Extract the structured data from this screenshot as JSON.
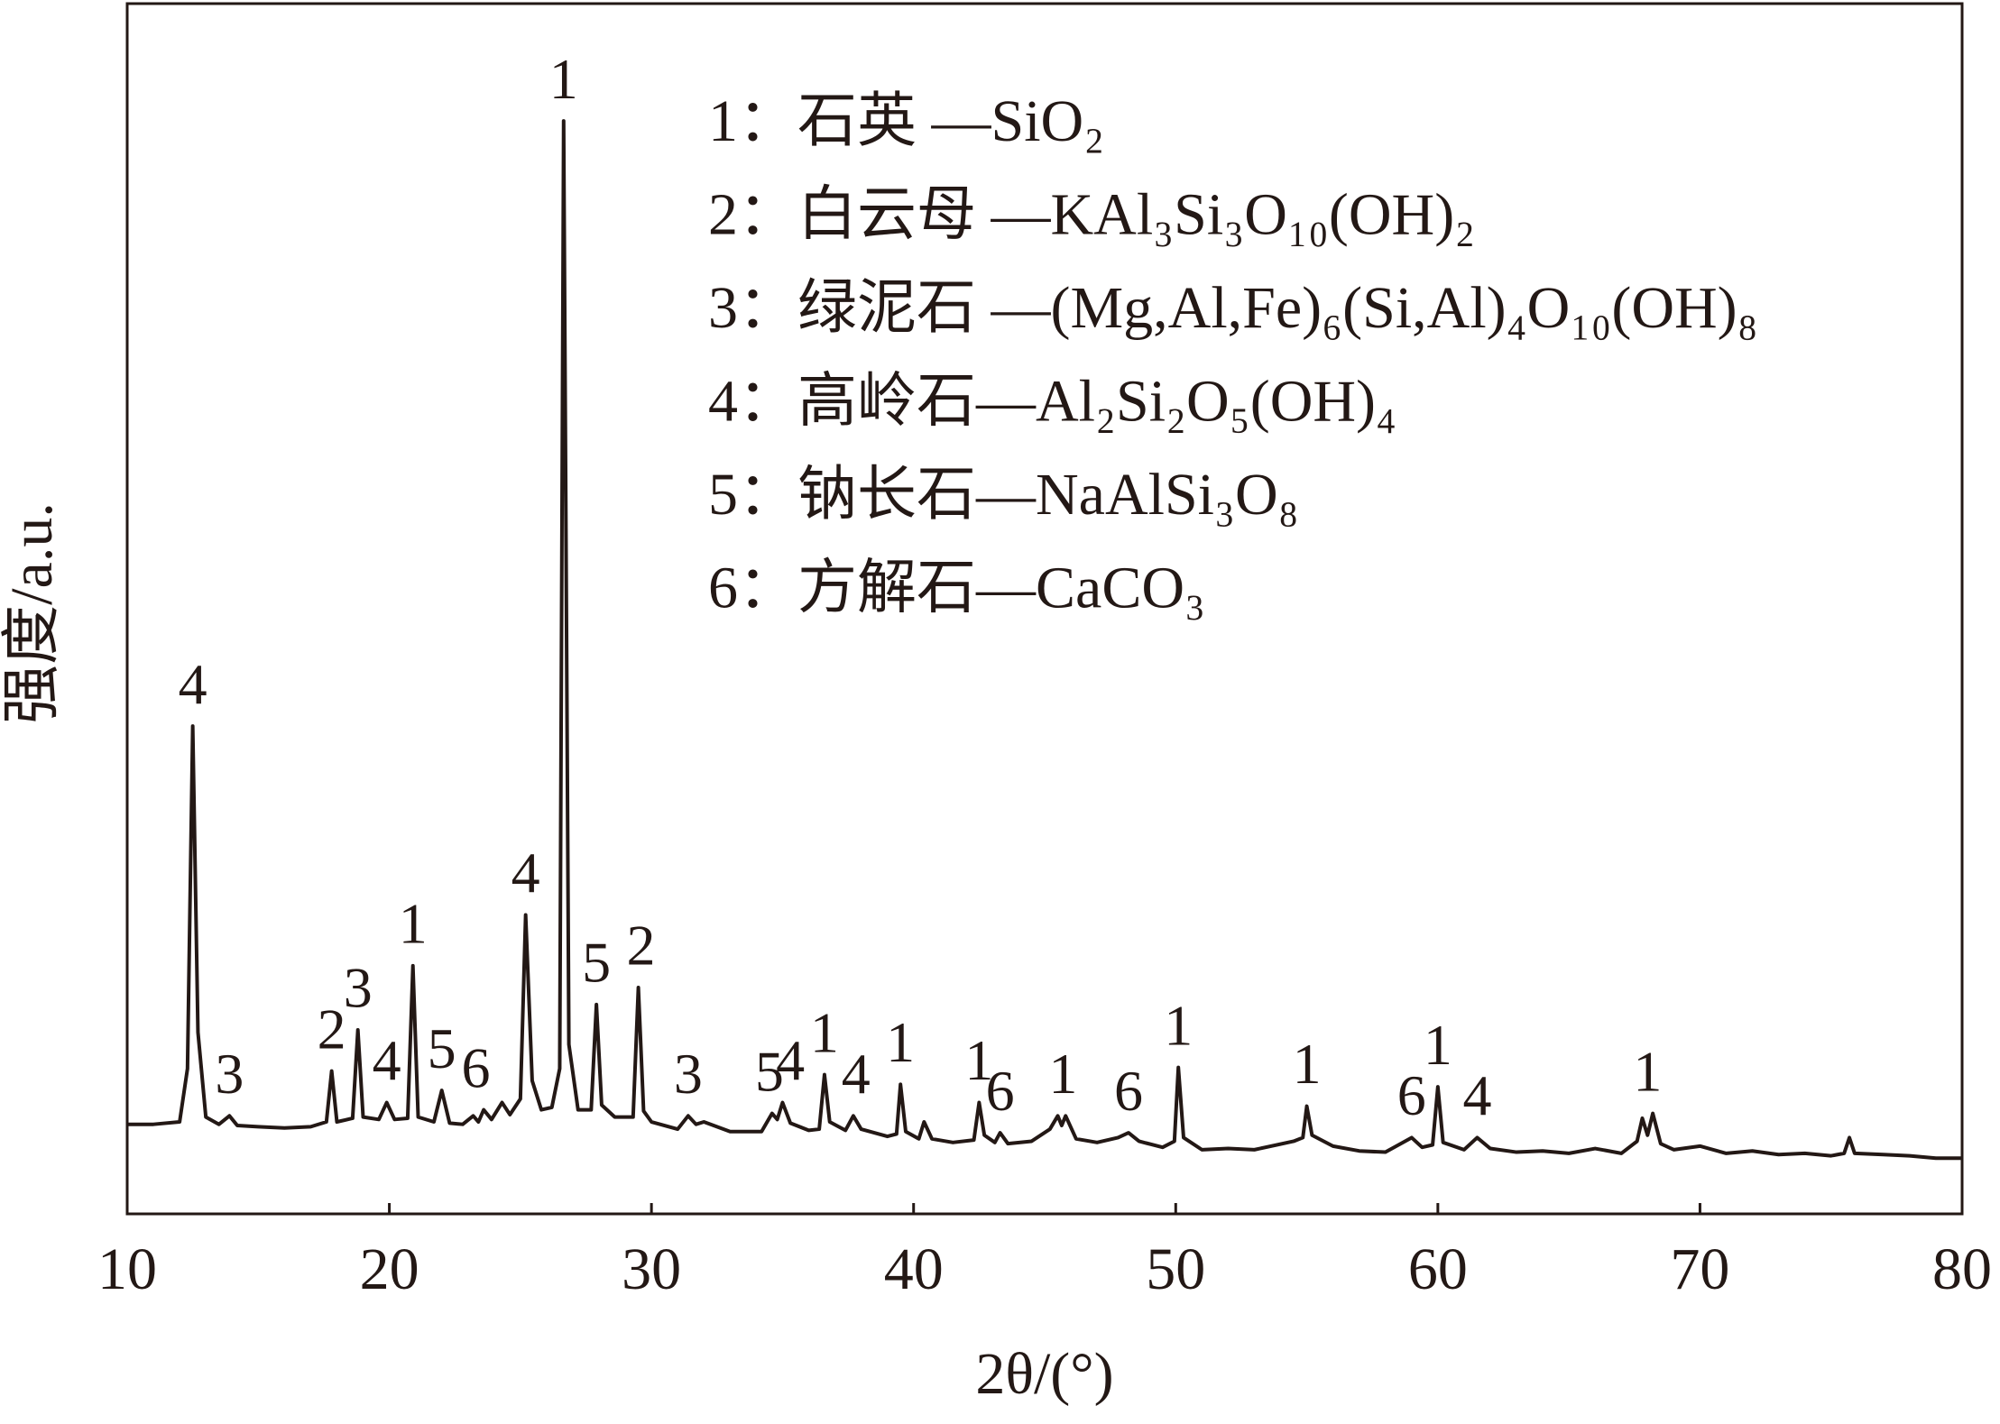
{
  "chart_data": {
    "type": "line",
    "x_label": "2θ/(°)",
    "y_label": "强度/a.u.",
    "color": "#231815",
    "x": [
      10,
      11,
      12,
      12.3,
      12.5,
      12.7,
      13.0,
      13.5,
      13.9,
      14.2,
      15,
      16,
      17,
      17.6,
      17.8,
      18.0,
      18.6,
      18.8,
      19.0,
      19.6,
      19.9,
      20.2,
      20.7,
      20.9,
      21.1,
      21.7,
      22.0,
      22.3,
      22.8,
      23.2,
      23.4,
      23.6,
      23.9,
      24.3,
      24.6,
      25.0,
      25.2,
      25.45,
      25.8,
      26.2,
      26.5,
      26.65,
      26.85,
      27.2,
      27.7,
      27.9,
      28.1,
      28.6,
      29.3,
      29.5,
      29.7,
      30.0,
      30.5,
      31.0,
      31.4,
      31.7,
      32.0,
      33,
      34.2,
      34.6,
      34.8,
      35.0,
      35.3,
      36.0,
      36.4,
      36.6,
      36.8,
      37.4,
      37.7,
      38.0,
      39.0,
      39.35,
      39.5,
      39.7,
      40.2,
      40.4,
      40.7,
      41.5,
      42.3,
      42.5,
      42.7,
      43.1,
      43.3,
      43.6,
      44.5,
      45.2,
      45.5,
      45.65,
      45.8,
      46.2,
      47,
      47.8,
      48.2,
      48.6,
      49.5,
      49.95,
      50.1,
      50.3,
      51,
      52,
      53,
      54.5,
      54.85,
      55.0,
      55.2,
      56,
      57,
      58,
      59.0,
      59.4,
      59.8,
      60.0,
      60.2,
      61.0,
      61.5,
      62.0,
      63,
      64,
      65,
      66,
      67,
      67.6,
      67.8,
      68.0,
      68.2,
      68.5,
      69,
      70,
      71,
      72,
      73,
      74,
      75,
      75.5,
      75.7,
      75.9,
      77,
      78,
      79,
      80
    ],
    "values": [
      7.4,
      7.4,
      7.6,
      12,
      40.3,
      15,
      8.0,
      7.4,
      8.1,
      7.3,
      7.2,
      7.1,
      7.2,
      7.6,
      11.8,
      7.6,
      7.9,
      15.2,
      8.0,
      7.8,
      9.2,
      7.8,
      7.9,
      20.5,
      8.0,
      7.6,
      10.2,
      7.5,
      7.4,
      8.1,
      7.6,
      8.6,
      7.8,
      9.2,
      8.2,
      9.5,
      24.7,
      11,
      8.6,
      8.8,
      12,
      90.3,
      14,
      8.6,
      8.6,
      17.3,
      9.0,
      8.0,
      8.0,
      18.7,
      8.5,
      7.6,
      7.3,
      7.0,
      8.1,
      7.4,
      7.6,
      6.8,
      6.8,
      8.3,
      7.8,
      9.2,
      7.5,
      6.9,
      7.0,
      11.5,
      7.6,
      6.9,
      8.1,
      7.0,
      6.4,
      6.6,
      10.7,
      6.8,
      6.2,
      7.6,
      6.2,
      5.9,
      6.1,
      9.2,
      6.5,
      5.9,
      6.7,
      5.8,
      6.0,
      7.0,
      8.1,
      7.3,
      8.1,
      6.2,
      5.9,
      6.3,
      6.7,
      6.0,
      5.5,
      6.0,
      12.1,
      6.3,
      5.3,
      5.4,
      5.3,
      6.0,
      6.3,
      8.9,
      6.5,
      5.6,
      5.2,
      5.1,
      6.3,
      5.5,
      5.7,
      10.5,
      5.9,
      5.3,
      6.3,
      5.4,
      5.1,
      5.2,
      5.0,
      5.4,
      5.0,
      6.0,
      7.9,
      6.5,
      8.3,
      5.8,
      5.3,
      5.6,
      5.0,
      5.2,
      4.9,
      5.0,
      4.8,
      5.0,
      6.3,
      5.0,
      4.9,
      4.8,
      4.6,
      4.6
    ],
    "xlim": [
      10,
      80
    ],
    "xticks": [
      10,
      20,
      30,
      40,
      50,
      60,
      70,
      80
    ],
    "ylim": [
      0,
      100
    ],
    "peak_labels": [
      {
        "x": 12.5,
        "text": "4"
      },
      {
        "x": 13.9,
        "text": "3"
      },
      {
        "x": 17.8,
        "text": "2"
      },
      {
        "x": 18.8,
        "text": "3"
      },
      {
        "x": 19.9,
        "text": "4"
      },
      {
        "x": 20.9,
        "text": "1"
      },
      {
        "x": 22.0,
        "text": "5"
      },
      {
        "x": 23.3,
        "text": "6"
      },
      {
        "x": 25.2,
        "text": "4"
      },
      {
        "x": 26.65,
        "text": "1"
      },
      {
        "x": 27.9,
        "text": "5"
      },
      {
        "x": 29.6,
        "text": "2"
      },
      {
        "x": 31.4,
        "text": "3"
      },
      {
        "x": 34.5,
        "text": "5"
      },
      {
        "x": 35.3,
        "text": "4"
      },
      {
        "x": 36.6,
        "text": "1"
      },
      {
        "x": 37.8,
        "text": "4"
      },
      {
        "x": 39.5,
        "text": "1"
      },
      {
        "x": 42.5,
        "text": "1"
      },
      {
        "x": 43.3,
        "text": "6"
      },
      {
        "x": 45.7,
        "text": "1"
      },
      {
        "x": 48.2,
        "text": "6"
      },
      {
        "x": 50.1,
        "text": "1"
      },
      {
        "x": 55.0,
        "text": "1"
      },
      {
        "x": 59.0,
        "text": "6"
      },
      {
        "x": 60.0,
        "text": "1"
      },
      {
        "x": 61.5,
        "text": "4"
      },
      {
        "x": 68.0,
        "text": "1"
      }
    ],
    "phase_legend": [
      "1：石英 —SiO₂",
      "2：白云母 —KAl₃Si₃O₁₀(OH)₂",
      "3：绿泥石 —(Mg,Al,Fe)₆(Si,Al)₄O₁₀(OH)₈",
      "4：高岭石—Al₂Si₂O₅(OH)₄",
      "5：钠长石—NaAlSi₃O₈",
      "6：方解石—CaCO₃"
    ]
  }
}
